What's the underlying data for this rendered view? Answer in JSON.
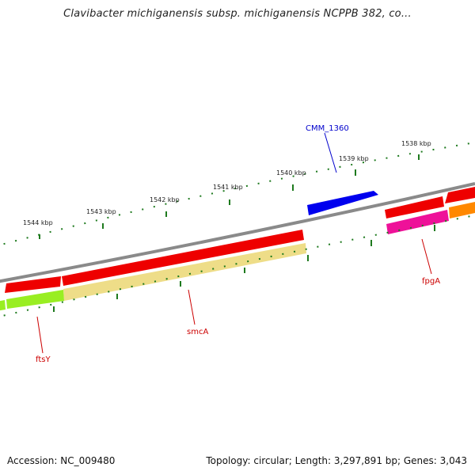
{
  "title": "Clavibacter michiganensis subsp. michiganensis NCPPB 382, co...",
  "footer": {
    "accession": "Accession: NC_009480",
    "summary": "Topology: circular; Length: 3,297,891 bp; Genes: 3,043"
  },
  "ruler": {
    "tick_labels": [
      "1544 kbp",
      "1543 kbp",
      "1542 kbp",
      "1541 kbp",
      "1540 kbp",
      "1539 kbp",
      "1538 kbp"
    ]
  },
  "gene_labels": [
    {
      "text": "CMM_1360",
      "color": "#0000cc"
    },
    {
      "text": "fpgA",
      "color": "#cc0000"
    },
    {
      "text": "smcA",
      "color": "#cc0000"
    },
    {
      "text": "ftsY",
      "color": "#cc0000"
    }
  ],
  "colors": {
    "backbone": "#8a8a8a",
    "tick": "#1e7a1e",
    "cds_red": "#ee0000",
    "cds_blue": "#0000ee",
    "gene_lime": "#99ee22",
    "gene_khaki": "#eedd88",
    "gene_pink": "#ee1199",
    "gene_orange": "#ff8800"
  }
}
